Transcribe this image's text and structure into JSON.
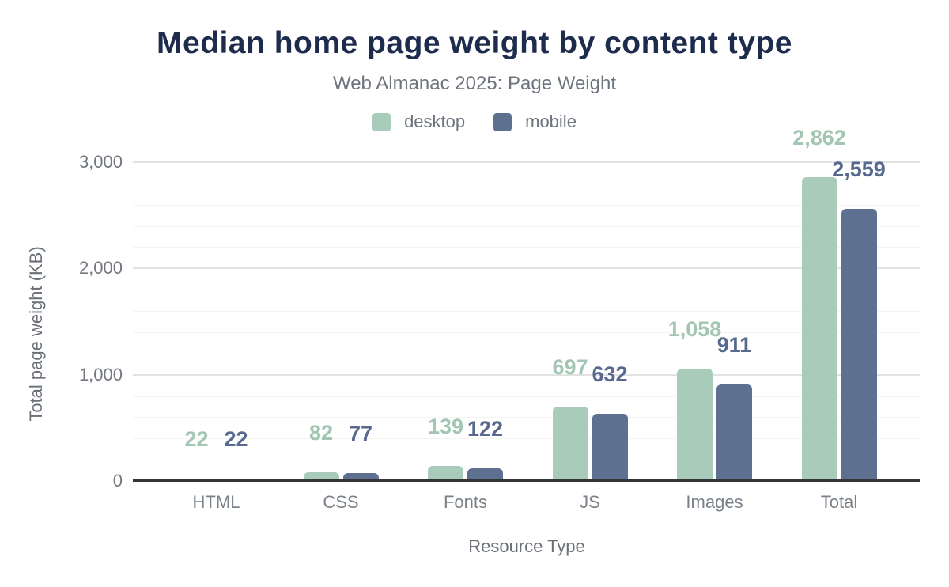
{
  "title": "Median home page weight by content type",
  "subtitle": "Web Almanac 2025: Page Weight",
  "legend": {
    "items": [
      {
        "label": "desktop",
        "color": "#a9cbba"
      },
      {
        "label": "mobile",
        "color": "#5e7090"
      }
    ]
  },
  "colors": {
    "title": "#1d2b4d",
    "desktop": "#a9cbba",
    "mobile": "#5e7090",
    "desktop_label": "#a3c6b4",
    "mobile_label": "#57698e",
    "axis_line": "#333538",
    "grid_major": "#e2e2e2",
    "grid_minor": "#f4f4f4",
    "text_muted": "#6e747e"
  },
  "chart_data": {
    "type": "bar",
    "categories": [
      "HTML",
      "CSS",
      "Fonts",
      "JS",
      "Images",
      "Total"
    ],
    "series": [
      {
        "name": "desktop",
        "color": "#a9cbba",
        "label_color": "#a3c6b4",
        "values": [
          22,
          82,
          139,
          697,
          1058,
          2862
        ],
        "labels": [
          "22",
          "82",
          "139",
          "697",
          "1,058",
          "2,862"
        ]
      },
      {
        "name": "mobile",
        "color": "#5e7090",
        "label_color": "#57698e",
        "values": [
          22,
          77,
          122,
          632,
          911,
          2559
        ],
        "labels": [
          "22",
          "77",
          "122",
          "632",
          "911",
          "2,559"
        ]
      }
    ],
    "title": "Median home page weight by content type",
    "subtitle": "Web Almanac 2025: Page Weight",
    "xlabel": "Resource Type",
    "ylabel": "Total page weight (KB)",
    "ylim": [
      0,
      3000
    ],
    "yticks": [
      0,
      1000,
      2000,
      3000
    ],
    "ytick_labels": [
      "0",
      "1,000",
      "2,000",
      "3,000"
    ],
    "minor_grid_step_kb": 200,
    "grid": true,
    "legend_position": "top-center",
    "data_labels": "above-bars"
  }
}
